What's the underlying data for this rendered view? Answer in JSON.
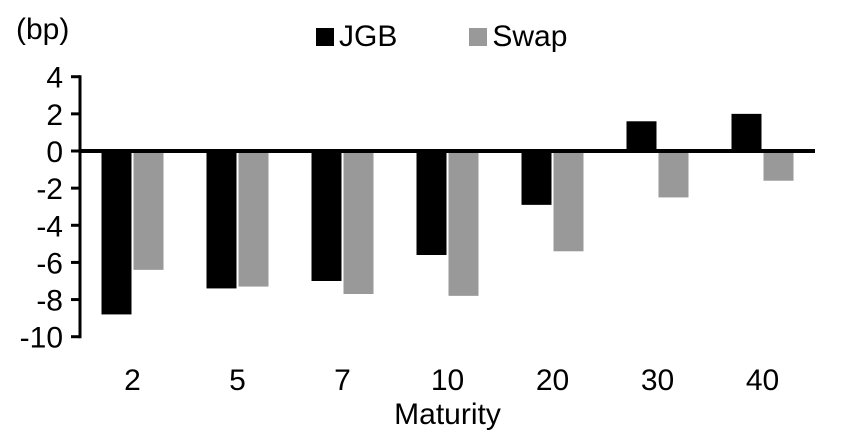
{
  "chart_data": {
    "type": "bar",
    "title": "",
    "unit_label": "(bp)",
    "xlabel": "Maturity",
    "ylabel": "(bp)",
    "categories": [
      "2",
      "5",
      "7",
      "10",
      "20",
      "30",
      "40"
    ],
    "series": [
      {
        "name": "JGB",
        "color": "#000000",
        "values": [
          -8.8,
          -7.4,
          -7.0,
          -5.6,
          -2.9,
          1.6,
          2.0
        ]
      },
      {
        "name": "Swap",
        "color": "#999999",
        "values": [
          -6.4,
          -7.3,
          -7.7,
          -7.8,
          -5.4,
          -2.5,
          -1.6
        ]
      }
    ],
    "ylim": [
      -10,
      4
    ],
    "ytick_step": 2,
    "yticks": [
      4,
      2,
      0,
      -2,
      -4,
      -6,
      -8,
      -10
    ],
    "grid": false,
    "legend_position": "top",
    "axis_color": "#000000"
  }
}
